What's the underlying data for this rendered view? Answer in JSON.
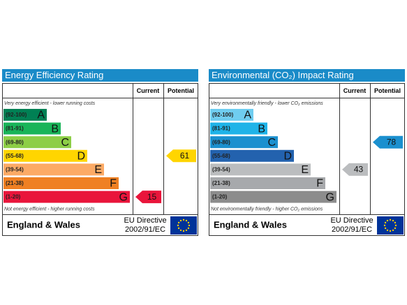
{
  "chart_data": [
    {
      "type": "epc",
      "title": "Energy Efficiency Rating",
      "columns": [
        "Current",
        "Potential"
      ],
      "top_note": "Very energy efficient - lower running costs",
      "bottom_note": "Not energy efficient - higher running costs",
      "bands": [
        {
          "range": "(92-100)",
          "letter": "A",
          "color": "#008054"
        },
        {
          "range": "(81-91)",
          "letter": "B",
          "color": "#19b459"
        },
        {
          "range": "(69-80)",
          "letter": "C",
          "color": "#8dce46"
        },
        {
          "range": "(55-68)",
          "letter": "D",
          "color": "#ffd500"
        },
        {
          "range": "(39-54)",
          "letter": "E",
          "color": "#fcaa65"
        },
        {
          "range": "(21-38)",
          "letter": "F",
          "color": "#ef8023"
        },
        {
          "range": "(1-20)",
          "letter": "G",
          "color": "#e9153b"
        }
      ],
      "current": 15,
      "potential": 61,
      "region": "England & Wales",
      "directive": [
        "EU Directive",
        "2002/91/EC"
      ]
    },
    {
      "type": "epc",
      "title": "Environmental (CO₂) Impact Rating",
      "columns": [
        "Current",
        "Potential"
      ],
      "top_note": "Very environmentally friendly - lower CO₂ emissions",
      "bottom_note": "Not environmentally friendly - higher CO₂ emissions",
      "bands": [
        {
          "range": "(92-100)",
          "letter": "A",
          "color": "#6fcdf0"
        },
        {
          "range": "(81-91)",
          "letter": "B",
          "color": "#1fb3e8"
        },
        {
          "range": "(69-80)",
          "letter": "C",
          "color": "#1b90cf"
        },
        {
          "range": "(55-68)",
          "letter": "D",
          "color": "#2362ae"
        },
        {
          "range": "(39-54)",
          "letter": "E",
          "color": "#bbbdbf"
        },
        {
          "range": "(21-38)",
          "letter": "F",
          "color": "#a7a9ac"
        },
        {
          "range": "(1-20)",
          "letter": "G",
          "color": "#8c8c8c"
        }
      ],
      "current": 43,
      "potential": 78,
      "region": "England & Wales",
      "directive": [
        "EU Directive",
        "2002/91/EC"
      ]
    }
  ]
}
